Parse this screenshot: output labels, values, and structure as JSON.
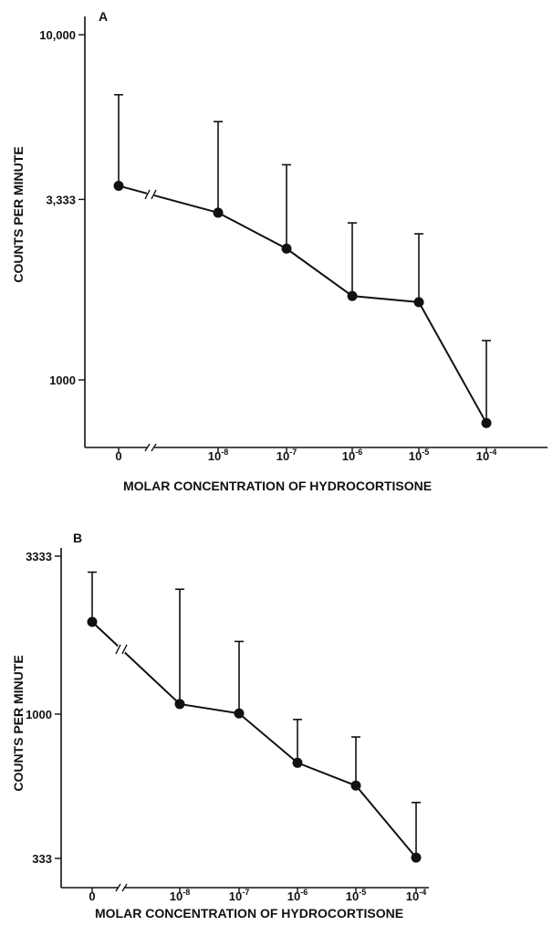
{
  "chart_data": [
    {
      "panel": "A",
      "type": "line",
      "y_scale": "log",
      "xlabel": "MOLAR CONCENTRATION OF HYDROCORTISONE",
      "ylabel": "COUNTS PER MINUTE",
      "categories": [
        {
          "base": "0",
          "exp": ""
        },
        {
          "base": "10",
          "exp": "-8"
        },
        {
          "base": "10",
          "exp": "-7"
        },
        {
          "base": "10",
          "exp": "-6"
        },
        {
          "base": "10",
          "exp": "-5"
        },
        {
          "base": "10",
          "exp": "-4"
        }
      ],
      "y_ticks": [
        {
          "value": 10000,
          "label": "10,000"
        },
        {
          "value": 3333,
          "label": "3,333"
        },
        {
          "value": 1000,
          "label": "1000"
        }
      ],
      "ylim": [
        650,
        11500
      ],
      "values": [
        3650,
        3050,
        2400,
        1750,
        1680,
        750
      ],
      "error_upper": [
        6700,
        5600,
        4200,
        2850,
        2650,
        1300
      ],
      "axis_break": true,
      "grid": false
    },
    {
      "panel": "B",
      "type": "line",
      "y_scale": "log",
      "xlabel": "MOLAR CONCENTRATION OF HYDROCORTISONE",
      "ylabel": "COUNTS PER MINUTE",
      "categories": [
        {
          "base": "0",
          "exp": ""
        },
        {
          "base": "10",
          "exp": "-8"
        },
        {
          "base": "10",
          "exp": "-7"
        },
        {
          "base": "10",
          "exp": "-6"
        },
        {
          "base": "10",
          "exp": "-5"
        },
        {
          "base": "10",
          "exp": "-4"
        }
      ],
      "y_ticks": [
        {
          "value": 3333,
          "label": "3333"
        },
        {
          "value": 1000,
          "label": "1000"
        },
        {
          "value": 333,
          "label": "333"
        }
      ],
      "ylim": [
        300,
        3333
      ],
      "values": [
        2020,
        1080,
        1005,
        690,
        580,
        335
      ],
      "error_upper": [
        2950,
        2590,
        1740,
        960,
        840,
        510
      ],
      "axis_break": true,
      "grid": false
    }
  ]
}
